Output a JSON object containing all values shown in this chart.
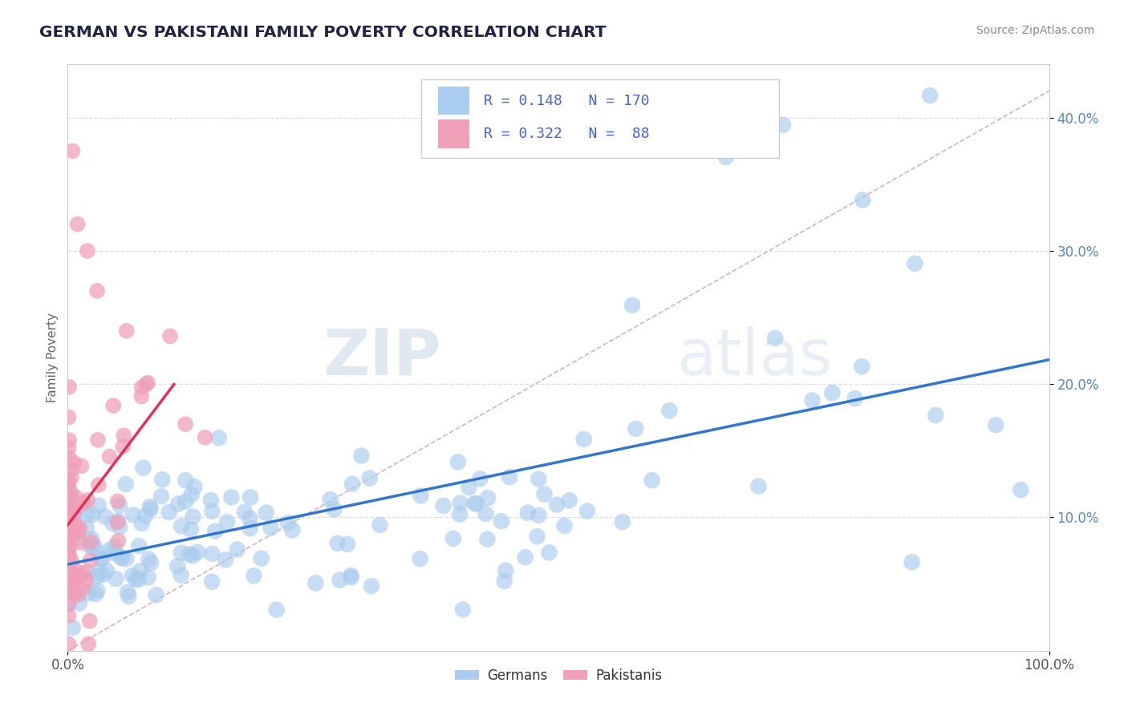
{
  "title": "GERMAN VS PAKISTANI FAMILY POVERTY CORRELATION CHART",
  "source_text": "Source: ZipAtlas.com",
  "ylabel": "Family Poverty",
  "watermark_zip": "ZIP",
  "watermark_atlas": "atlas",
  "xlim": [
    0.0,
    1.0
  ],
  "ylim": [
    0.0,
    0.44
  ],
  "german_color": "#aaccee",
  "pakistani_color": "#f0a0b8",
  "german_line_color": "#3377cc",
  "pakistani_line_color": "#dd3355",
  "diag_line_color": "#ccaabb",
  "legend_text_color": "#4466cc",
  "title_color": "#222244",
  "grid_color": "#dddddd",
  "background_color": "#ffffff",
  "n_german": 170,
  "n_pakistani": 88
}
